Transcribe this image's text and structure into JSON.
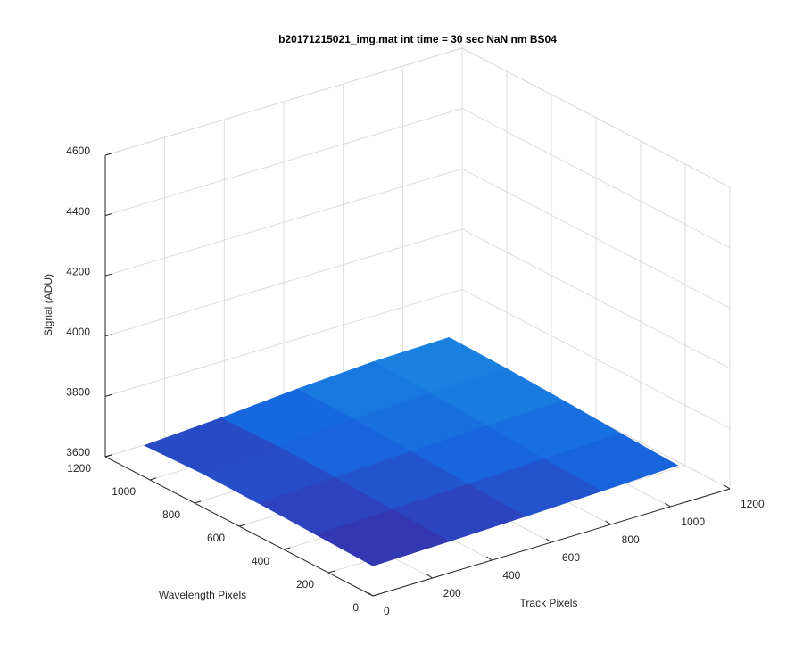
{
  "chart_data": {
    "type": "surface",
    "title": "b20171215021_img.mat int time = 30 sec  NaN nm BS04",
    "xlabel": "Track Pixels",
    "ylabel": "Wavelength Pixels",
    "zlabel": "Signal (ADU)",
    "xlim": [
      0,
      1200
    ],
    "ylim": [
      0,
      1200
    ],
    "zlim": [
      3600,
      4600
    ],
    "xticks": [
      0,
      200,
      400,
      600,
      800,
      1000,
      1200
    ],
    "yticks": [
      0,
      200,
      400,
      600,
      800,
      1000,
      1200
    ],
    "zticks": [
      3600,
      3800,
      4000,
      4200,
      4400,
      4600
    ],
    "grid": true,
    "colormap": [
      "#3b2ca8",
      "#1766df",
      "#1a86e0"
    ],
    "x": [
      0,
      256,
      512,
      768,
      1024
    ],
    "y": [
      0,
      256,
      512,
      768,
      1024
    ],
    "z": [
      [
        3700,
        3705,
        3712,
        3720,
        3730
      ],
      [
        3705,
        3712,
        3720,
        3728,
        3738
      ],
      [
        3710,
        3720,
        3730,
        3740,
        3748
      ],
      [
        3712,
        3725,
        3738,
        3750,
        3756
      ],
      [
        3705,
        3720,
        3740,
        3755,
        3760
      ]
    ]
  }
}
